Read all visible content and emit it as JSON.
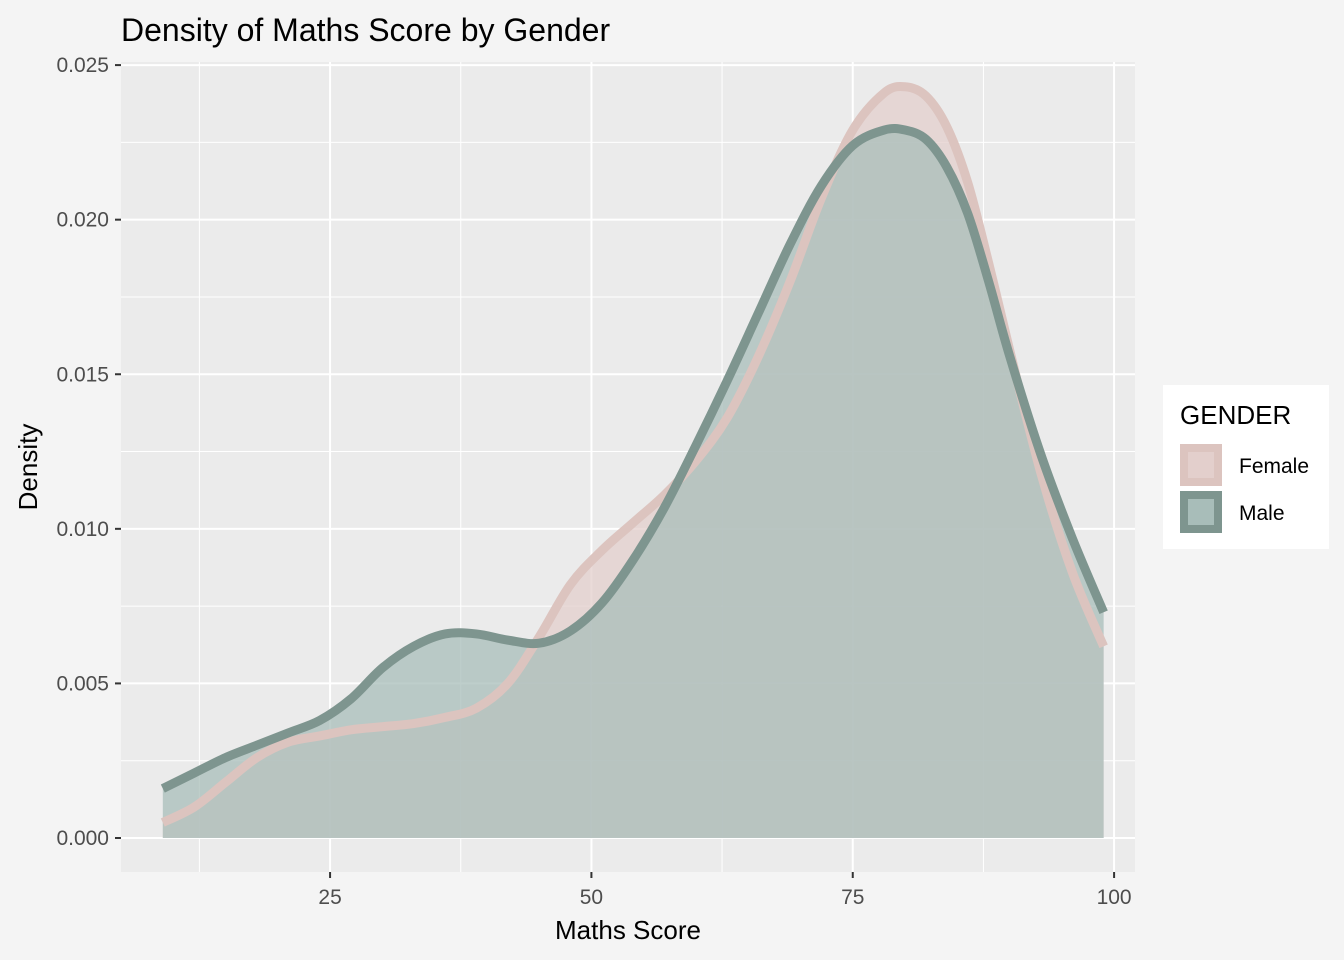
{
  "chart_data": {
    "type": "area",
    "title": "Density of Maths Score by Gender",
    "xlabel": "Maths Score",
    "ylabel": "Density",
    "xlim": [
      5,
      102
    ],
    "ylim": [
      -0.0011,
      0.0251
    ],
    "x_ticks": [
      25,
      50,
      75,
      100
    ],
    "x_tick_labels": [
      "25",
      "50",
      "75",
      "100"
    ],
    "y_ticks": [
      0,
      0.005,
      0.01,
      0.015,
      0.02,
      0.025
    ],
    "y_tick_labels": [
      "0.000",
      "0.005",
      "0.010",
      "0.015",
      "0.020",
      "0.025"
    ],
    "grid": true,
    "legend": {
      "title": "GENDER",
      "position": "right"
    },
    "series": [
      {
        "name": "Female",
        "fill": "#e3cfcc",
        "line": "#dcc4bf",
        "x": [
          9,
          12,
          15,
          18,
          21,
          24,
          27,
          30,
          33,
          36,
          39,
          42,
          45,
          48,
          51,
          54,
          57,
          60,
          63,
          66,
          69,
          72,
          75,
          78,
          80,
          82,
          84,
          86,
          88,
          90,
          93,
          96,
          99
        ],
        "y": [
          0.0005,
          0.001,
          0.0018,
          0.0026,
          0.0031,
          0.0033,
          0.0035,
          0.0036,
          0.0037,
          0.0039,
          0.0042,
          0.005,
          0.0065,
          0.0082,
          0.0093,
          0.0102,
          0.0111,
          0.0122,
          0.0136,
          0.0156,
          0.018,
          0.0207,
          0.0229,
          0.0241,
          0.0243,
          0.024,
          0.023,
          0.0212,
          0.0186,
          0.0158,
          0.0118,
          0.0086,
          0.0062
        ]
      },
      {
        "name": "Male",
        "fill": "#a8bdb9",
        "line": "#7e958f",
        "x": [
          9,
          12,
          15,
          18,
          21,
          24,
          27,
          30,
          33,
          36,
          39,
          42,
          45,
          48,
          51,
          54,
          57,
          60,
          63,
          66,
          69,
          72,
          75,
          78,
          80,
          82,
          84,
          86,
          88,
          90,
          93,
          96,
          99
        ],
        "y": [
          0.0016,
          0.0021,
          0.0026,
          0.003,
          0.0034,
          0.0038,
          0.0045,
          0.0055,
          0.0062,
          0.0066,
          0.0066,
          0.0064,
          0.0063,
          0.0067,
          0.0076,
          0.009,
          0.0107,
          0.0127,
          0.0148,
          0.017,
          0.0192,
          0.0211,
          0.0224,
          0.0229,
          0.0229,
          0.0226,
          0.0217,
          0.0202,
          0.018,
          0.0156,
          0.0124,
          0.0097,
          0.0073
        ]
      }
    ]
  }
}
